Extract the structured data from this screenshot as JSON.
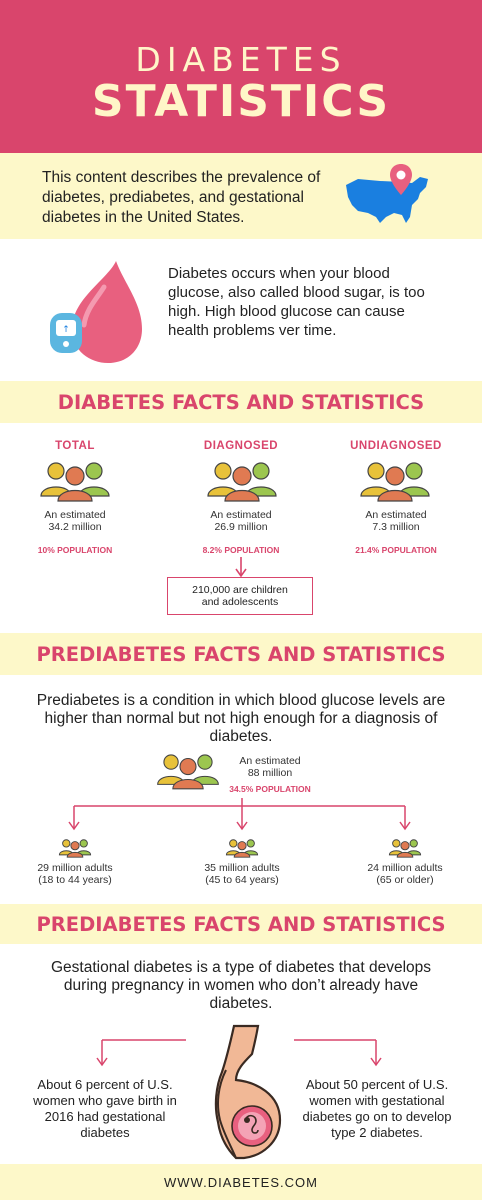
{
  "header": {
    "title_top": "DIABETES",
    "title_bottom": "STATISTICS"
  },
  "intro": {
    "text": "This content describes the prevalence of diabetes, prediabetes, and gestational diabetes in the United States."
  },
  "definition": {
    "text": "Diabetes occurs when your blood glucose, also called blood sugar, is too high. High blood glucose can cause health problems ver time."
  },
  "diabetes_facts": {
    "title": "DIABETES FACTS AND STATISTICS",
    "columns": [
      {
        "label": "TOTAL",
        "estimate_line1": "An estimated",
        "estimate_line2": "34.2 million",
        "population": "10% POPULATION"
      },
      {
        "label": "DIAGNOSED",
        "estimate_line1": "An estimated",
        "estimate_line2": "26.9 million",
        "population": "8.2% POPULATION"
      },
      {
        "label": "UNDIAGNOSED",
        "estimate_line1": "An estimated",
        "estimate_line2": "7.3 million",
        "population": "21.4% POPULATION"
      }
    ],
    "children_note_line1": "210,000 are children",
    "children_note_line2": "and adolescents"
  },
  "prediabetes_facts": {
    "title": "PREDIABETES FACTS AND STATISTICS",
    "description": "Prediabetes is a condition in which blood glucose levels are higher than normal but not high enough for a diagnosis of diabetes.",
    "estimate_line1": "An estimated",
    "estimate_line2": "88 million",
    "population": "34.5% POPULATION",
    "groups": [
      {
        "line1": "29 million adults",
        "line2": "(18 to 44 years)"
      },
      {
        "line1": "35 million adults",
        "line2": "(45 to 64 years)"
      },
      {
        "line1": "24 million adults",
        "line2": "(65 or older)"
      }
    ]
  },
  "gestational_facts": {
    "title": "PREDIABETES FACTS AND STATISTICS",
    "description": "Gestational diabetes is a type of diabetes that develops during pregnancy in women who don’t already have diabetes.",
    "left_text": "About 6 percent of U.S. women who gave birth in 2016 had gestational diabetes",
    "right_text": "About 50 percent of U.S. women with gestational diabetes go on to develop type 2 diabetes."
  },
  "footer": {
    "website": "WWW.DIABETES.COM"
  },
  "colors": {
    "brand_pink": "#d9456c",
    "cream": "#fdf8c9",
    "person_yellow": "#e8c23a",
    "person_orange": "#e07a52",
    "person_green": "#9cc64f",
    "map_blue": "#1a7fe0"
  },
  "icons": [
    "usa-map-icon",
    "location-pin-icon",
    "blood-drop-icon",
    "glucose-meter-icon",
    "people-group-icon",
    "arrow-down-icon",
    "pregnant-woman-icon"
  ]
}
